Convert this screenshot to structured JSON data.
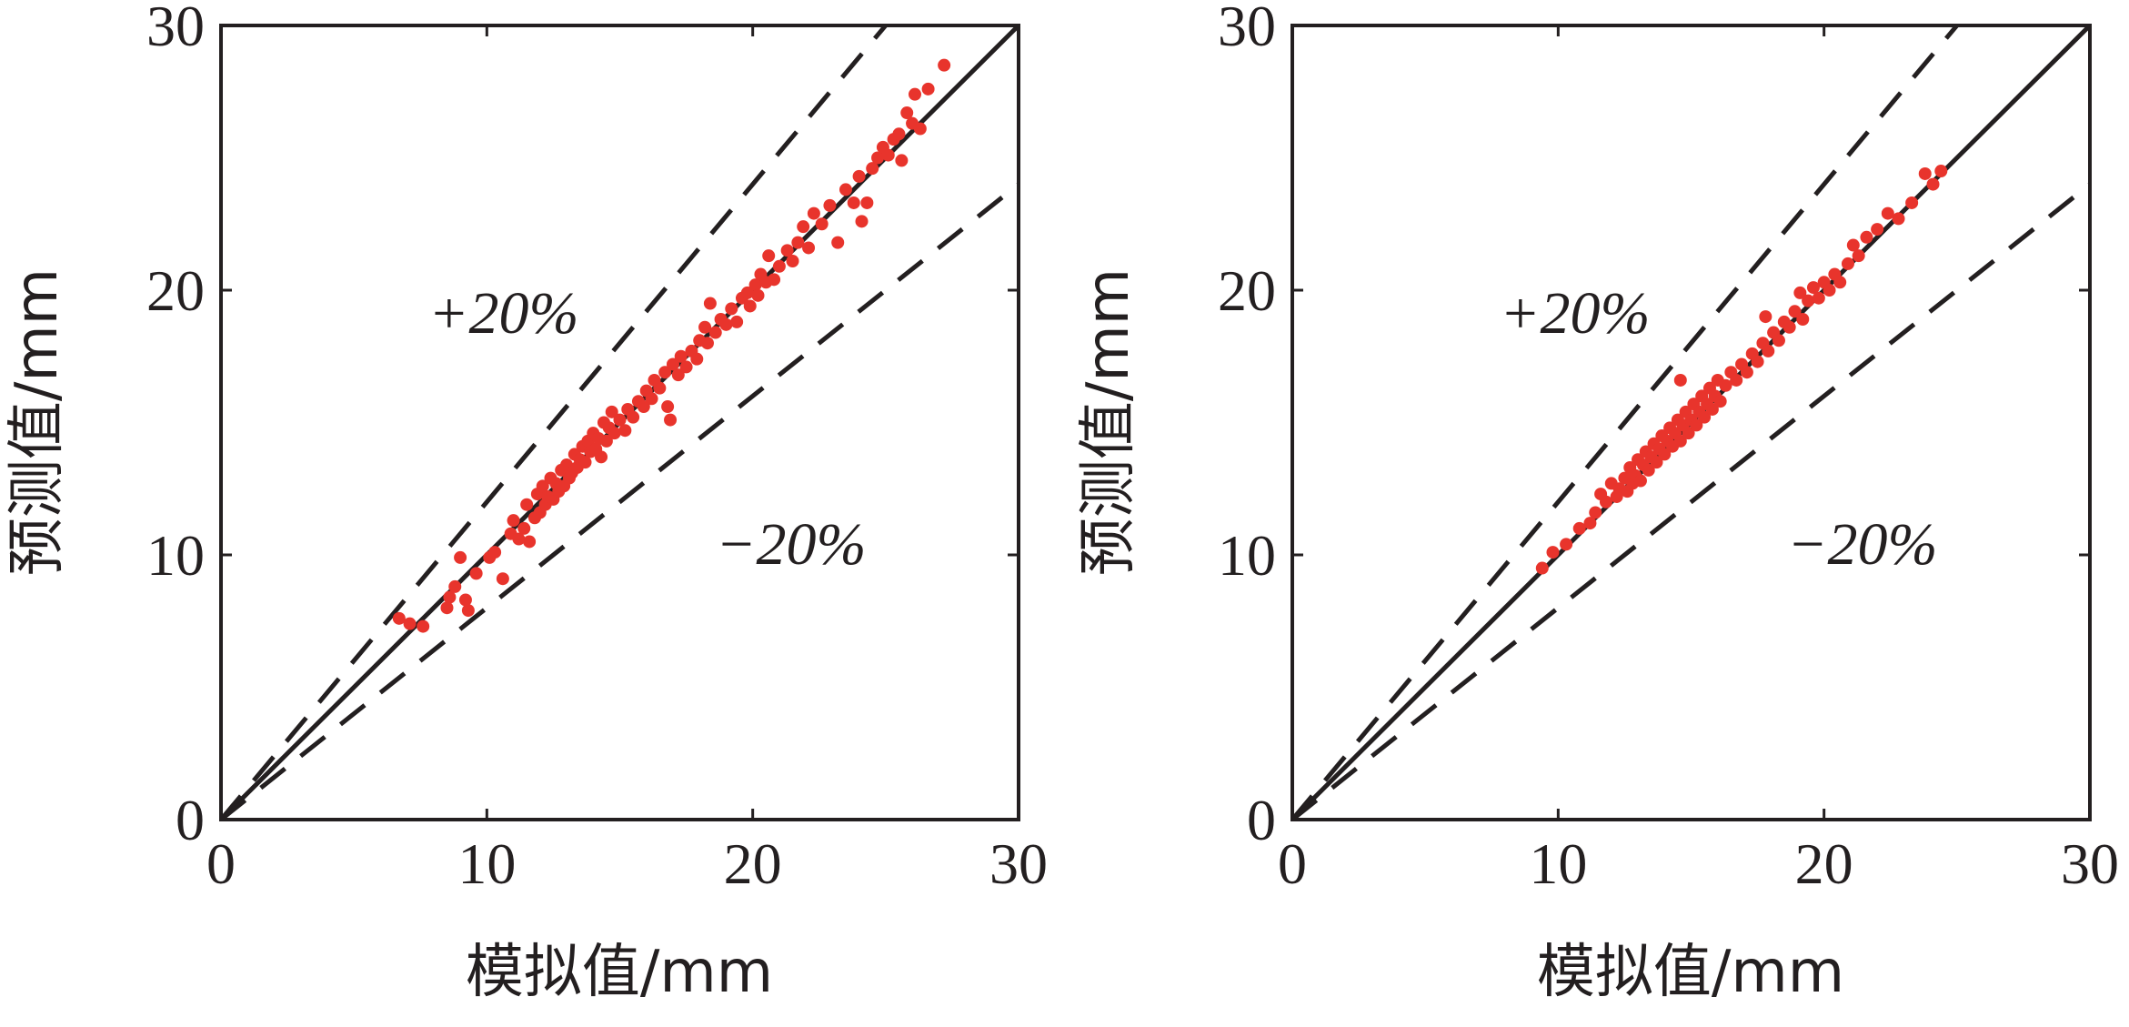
{
  "chart_data": [
    {
      "type": "scatter",
      "xlabel": "模拟值/mm",
      "ylabel": "预测值/mm",
      "xlim": [
        0,
        30
      ],
      "ylim": [
        0,
        30
      ],
      "xticks": [
        "0",
        "10",
        "20",
        "30"
      ],
      "yticks": [
        "0",
        "10",
        "20",
        "30"
      ],
      "grid": false,
      "reference_lines": [
        {
          "kind": "y=x",
          "style": "solid"
        },
        {
          "kind": "y=1.2x",
          "style": "dashed",
          "label": "+20%"
        },
        {
          "kind": "y=0.8x",
          "style": "dashed",
          "label": "−20%"
        }
      ],
      "color": "#e8342c",
      "points": [
        [
          6.7,
          7.6
        ],
        [
          7.1,
          7.4
        ],
        [
          7.6,
          7.3
        ],
        [
          8.5,
          8.0
        ],
        [
          8.6,
          8.4
        ],
        [
          8.8,
          8.8
        ],
        [
          9.0,
          9.9
        ],
        [
          9.2,
          8.3
        ],
        [
          9.3,
          7.9
        ],
        [
          9.6,
          9.3
        ],
        [
          10.1,
          9.9
        ],
        [
          10.3,
          10.1
        ],
        [
          10.6,
          9.1
        ],
        [
          10.9,
          10.8
        ],
        [
          11.0,
          11.3
        ],
        [
          11.2,
          10.6
        ],
        [
          11.4,
          11.0
        ],
        [
          11.5,
          11.9
        ],
        [
          11.6,
          10.5
        ],
        [
          11.8,
          11.4
        ],
        [
          11.9,
          12.3
        ],
        [
          12.0,
          11.6
        ],
        [
          12.1,
          12.6
        ],
        [
          12.2,
          11.9
        ],
        [
          12.3,
          12.2
        ],
        [
          12.4,
          12.9
        ],
        [
          12.5,
          12.1
        ],
        [
          12.6,
          12.7
        ],
        [
          12.7,
          12.4
        ],
        [
          12.8,
          13.2
        ],
        [
          12.9,
          12.6
        ],
        [
          13.0,
          13.4
        ],
        [
          13.1,
          12.9
        ],
        [
          13.2,
          13.1
        ],
        [
          13.3,
          13.8
        ],
        [
          13.4,
          13.3
        ],
        [
          13.5,
          13.6
        ],
        [
          13.6,
          14.1
        ],
        [
          13.7,
          13.5
        ],
        [
          13.8,
          14.3
        ],
        [
          13.9,
          13.9
        ],
        [
          14.0,
          14.6
        ],
        [
          14.1,
          14.0
        ],
        [
          14.2,
          14.4
        ],
        [
          14.3,
          13.7
        ],
        [
          14.4,
          15.0
        ],
        [
          14.5,
          14.3
        ],
        [
          14.6,
          14.8
        ],
        [
          14.7,
          15.4
        ],
        [
          14.8,
          14.6
        ],
        [
          15.0,
          15.1
        ],
        [
          15.2,
          14.7
        ],
        [
          15.3,
          15.5
        ],
        [
          15.5,
          15.2
        ],
        [
          15.7,
          15.8
        ],
        [
          15.9,
          15.6
        ],
        [
          16.0,
          16.2
        ],
        [
          16.2,
          15.9
        ],
        [
          16.3,
          16.6
        ],
        [
          16.5,
          16.3
        ],
        [
          16.7,
          16.9
        ],
        [
          16.8,
          15.6
        ],
        [
          16.9,
          15.1
        ],
        [
          17.0,
          17.2
        ],
        [
          17.2,
          16.8
        ],
        [
          17.3,
          17.5
        ],
        [
          17.5,
          17.1
        ],
        [
          17.7,
          17.7
        ],
        [
          17.9,
          17.4
        ],
        [
          18.0,
          18.1
        ],
        [
          18.2,
          18.6
        ],
        [
          18.3,
          18.0
        ],
        [
          18.4,
          19.5
        ],
        [
          18.6,
          18.4
        ],
        [
          18.8,
          18.9
        ],
        [
          19.0,
          18.7
        ],
        [
          19.2,
          19.3
        ],
        [
          19.4,
          18.8
        ],
        [
          19.6,
          19.7
        ],
        [
          19.8,
          19.9
        ],
        [
          19.9,
          19.4
        ],
        [
          20.1,
          20.2
        ],
        [
          20.2,
          19.8
        ],
        [
          20.3,
          20.6
        ],
        [
          20.5,
          20.3
        ],
        [
          20.6,
          21.3
        ],
        [
          20.8,
          20.4
        ],
        [
          21.0,
          20.9
        ],
        [
          21.3,
          21.5
        ],
        [
          21.5,
          21.1
        ],
        [
          21.7,
          21.8
        ],
        [
          21.9,
          22.4
        ],
        [
          22.1,
          21.6
        ],
        [
          22.3,
          22.9
        ],
        [
          22.6,
          22.5
        ],
        [
          22.9,
          23.2
        ],
        [
          23.2,
          21.8
        ],
        [
          23.5,
          23.8
        ],
        [
          23.8,
          23.3
        ],
        [
          24.0,
          24.3
        ],
        [
          24.1,
          22.6
        ],
        [
          24.3,
          23.3
        ],
        [
          24.5,
          24.6
        ],
        [
          24.7,
          25.0
        ],
        [
          24.9,
          25.4
        ],
        [
          25.1,
          25.1
        ],
        [
          25.3,
          25.7
        ],
        [
          25.5,
          25.9
        ],
        [
          25.6,
          24.9
        ],
        [
          25.8,
          26.7
        ],
        [
          26.0,
          26.3
        ],
        [
          26.1,
          27.4
        ],
        [
          26.3,
          26.1
        ],
        [
          26.6,
          27.6
        ],
        [
          27.2,
          28.5
        ]
      ]
    },
    {
      "type": "scatter",
      "xlabel": "模拟值/mm",
      "ylabel": "预测值/mm",
      "xlim": [
        0,
        30
      ],
      "ylim": [
        0,
        30
      ],
      "xticks": [
        "0",
        "10",
        "20",
        "30"
      ],
      "yticks": [
        "0",
        "10",
        "20",
        "30"
      ],
      "grid": false,
      "reference_lines": [
        {
          "kind": "y=x",
          "style": "solid"
        },
        {
          "kind": "y=1.2x",
          "style": "dashed",
          "label": "+20%"
        },
        {
          "kind": "y=0.8x",
          "style": "dashed",
          "label": "−20%"
        }
      ],
      "color": "#e8342c",
      "points": [
        [
          9.4,
          9.5
        ],
        [
          9.8,
          10.1
        ],
        [
          10.3,
          10.4
        ],
        [
          10.8,
          11.0
        ],
        [
          11.2,
          11.2
        ],
        [
          11.4,
          11.6
        ],
        [
          11.6,
          12.3
        ],
        [
          11.8,
          12.0
        ],
        [
          12.0,
          12.7
        ],
        [
          12.2,
          12.2
        ],
        [
          12.3,
          12.5
        ],
        [
          12.5,
          12.9
        ],
        [
          12.6,
          12.4
        ],
        [
          12.7,
          13.3
        ],
        [
          12.8,
          12.7
        ],
        [
          12.9,
          13.0
        ],
        [
          13.0,
          13.6
        ],
        [
          13.1,
          12.8
        ],
        [
          13.2,
          13.4
        ],
        [
          13.3,
          13.9
        ],
        [
          13.4,
          13.2
        ],
        [
          13.5,
          13.7
        ],
        [
          13.6,
          14.2
        ],
        [
          13.7,
          13.5
        ],
        [
          13.8,
          14.0
        ],
        [
          13.9,
          14.5
        ],
        [
          14.0,
          13.8
        ],
        [
          14.1,
          14.3
        ],
        [
          14.2,
          14.8
        ],
        [
          14.3,
          14.1
        ],
        [
          14.4,
          14.6
        ],
        [
          14.5,
          15.1
        ],
        [
          14.6,
          16.6
        ],
        [
          14.6,
          14.3
        ],
        [
          14.7,
          14.9
        ],
        [
          14.8,
          15.4
        ],
        [
          14.9,
          14.6
        ],
        [
          15.0,
          15.1
        ],
        [
          15.1,
          15.7
        ],
        [
          15.2,
          14.9
        ],
        [
          15.3,
          15.4
        ],
        [
          15.4,
          16.0
        ],
        [
          15.5,
          15.2
        ],
        [
          15.6,
          15.7
        ],
        [
          15.7,
          16.3
        ],
        [
          15.8,
          15.5
        ],
        [
          15.9,
          16.0
        ],
        [
          16.0,
          16.6
        ],
        [
          16.1,
          15.8
        ],
        [
          16.3,
          16.4
        ],
        [
          16.5,
          16.9
        ],
        [
          16.7,
          16.6
        ],
        [
          16.9,
          17.2
        ],
        [
          17.1,
          16.9
        ],
        [
          17.3,
          17.6
        ],
        [
          17.5,
          17.3
        ],
        [
          17.7,
          18.0
        ],
        [
          17.8,
          19.0
        ],
        [
          17.9,
          17.7
        ],
        [
          18.1,
          18.4
        ],
        [
          18.3,
          18.1
        ],
        [
          18.5,
          18.8
        ],
        [
          18.7,
          18.6
        ],
        [
          18.9,
          19.2
        ],
        [
          19.1,
          19.9
        ],
        [
          19.2,
          18.9
        ],
        [
          19.4,
          19.6
        ],
        [
          19.6,
          20.1
        ],
        [
          19.8,
          19.7
        ],
        [
          20.0,
          20.3
        ],
        [
          20.2,
          20.0
        ],
        [
          20.4,
          20.6
        ],
        [
          20.6,
          20.3
        ],
        [
          20.9,
          21.0
        ],
        [
          21.1,
          21.7
        ],
        [
          21.3,
          21.3
        ],
        [
          21.6,
          22.0
        ],
        [
          22.0,
          22.3
        ],
        [
          22.4,
          22.9
        ],
        [
          22.8,
          22.7
        ],
        [
          23.3,
          23.3
        ],
        [
          23.8,
          24.4
        ],
        [
          24.1,
          24.0
        ],
        [
          24.4,
          24.5
        ]
      ]
    }
  ]
}
